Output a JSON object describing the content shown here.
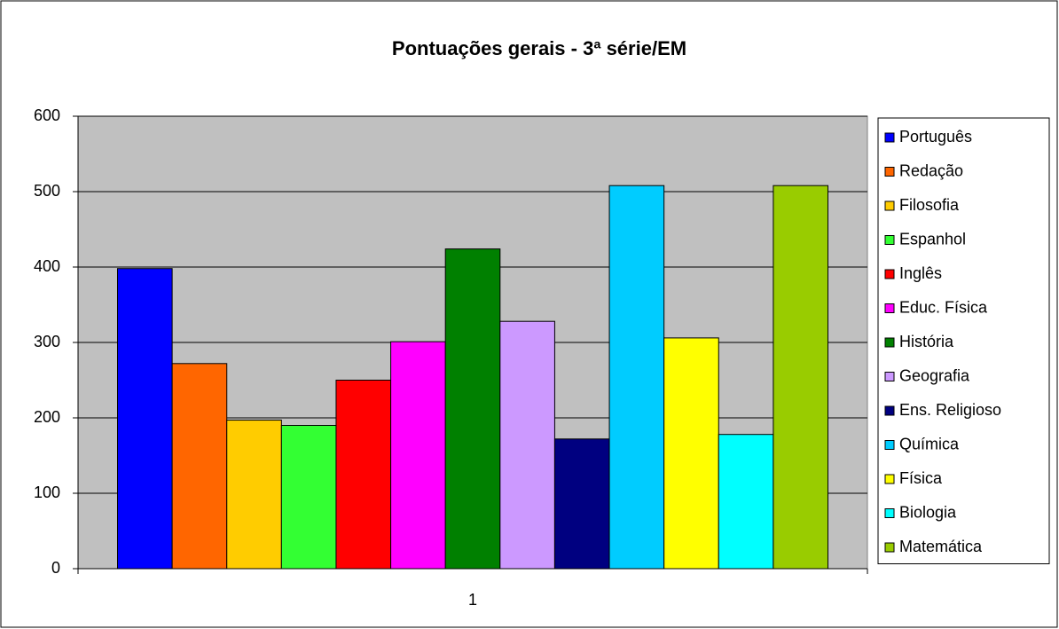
{
  "chart_data": {
    "type": "bar",
    "title": "Pontuações gerais - 3ª série/EM",
    "categories": [
      "1"
    ],
    "series": [
      {
        "name": "Português",
        "color": "#0000ff",
        "values": [
          398
        ]
      },
      {
        "name": "Redação",
        "color": "#ff6600",
        "values": [
          272
        ]
      },
      {
        "name": "Filosofia",
        "color": "#ffcc00",
        "values": [
          197
        ]
      },
      {
        "name": "Espanhol",
        "color": "#33ff33",
        "values": [
          190
        ]
      },
      {
        "name": "Inglês",
        "color": "#ff0000",
        "values": [
          250
        ]
      },
      {
        "name": "Educ. Física",
        "color": "#ff00ff",
        "values": [
          301
        ]
      },
      {
        "name": "História",
        "color": "#008000",
        "values": [
          424
        ]
      },
      {
        "name": "Geografia",
        "color": "#cc99ff",
        "values": [
          328
        ]
      },
      {
        "name": "Ens. Religioso",
        "color": "#000080",
        "values": [
          172
        ]
      },
      {
        "name": "Química",
        "color": "#00ccff",
        "values": [
          508
        ]
      },
      {
        "name": "Física",
        "color": "#ffff00",
        "values": [
          306
        ]
      },
      {
        "name": "Biologia",
        "color": "#00ffff",
        "values": [
          178
        ]
      },
      {
        "name": "Matemática",
        "color": "#99cc00",
        "values": [
          508
        ]
      }
    ],
    "ylim": [
      0,
      600
    ],
    "yticks": [
      0,
      100,
      200,
      300,
      400,
      500,
      600
    ],
    "grid": true,
    "legend": "right"
  }
}
